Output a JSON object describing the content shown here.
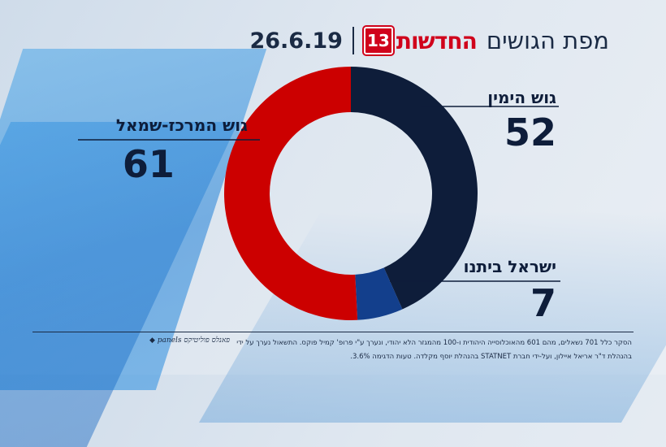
{
  "header": {
    "title": "מפת הגושים",
    "logo_text": "החדשות",
    "logo_number": "13",
    "date": "26.6.19"
  },
  "blocks": {
    "right": {
      "label": "גוש הימין",
      "value": "52"
    },
    "center_left": {
      "label": "גוש המרכז-שמאל",
      "value": "61"
    },
    "israel_beytenu": {
      "label": "ישראל ביתנו",
      "value": "7"
    }
  },
  "chart_data": {
    "type": "pie",
    "donut": true,
    "categories": [
      "גוש הימין",
      "ישראל ביתנו",
      "גוש המרכז-שמאל"
    ],
    "values": [
      52,
      7,
      61
    ],
    "colors": [
      "#0e1d3a",
      "#133f8c",
      "#cc0000"
    ],
    "total": 120,
    "start": "top",
    "direction": "clockwise"
  },
  "footer": {
    "line1": "הסקר כלל 701 נשאלים, מהם 601 מהאוכלוסייה היהודית ו-100 מהמגזר הלא יהודי, ונערך ע\"י פרופ' קמיל פוקס. התשאול נערך על ידי",
    "line2": "בהנהלת ד\"ר אריאל איילון, ועל-ידי חברת STATNET בהנהלת יוסף מקלדה. טעות הדגימה 3.6%.",
    "mark": "◆ panels פאנלס פוליטיקס"
  }
}
